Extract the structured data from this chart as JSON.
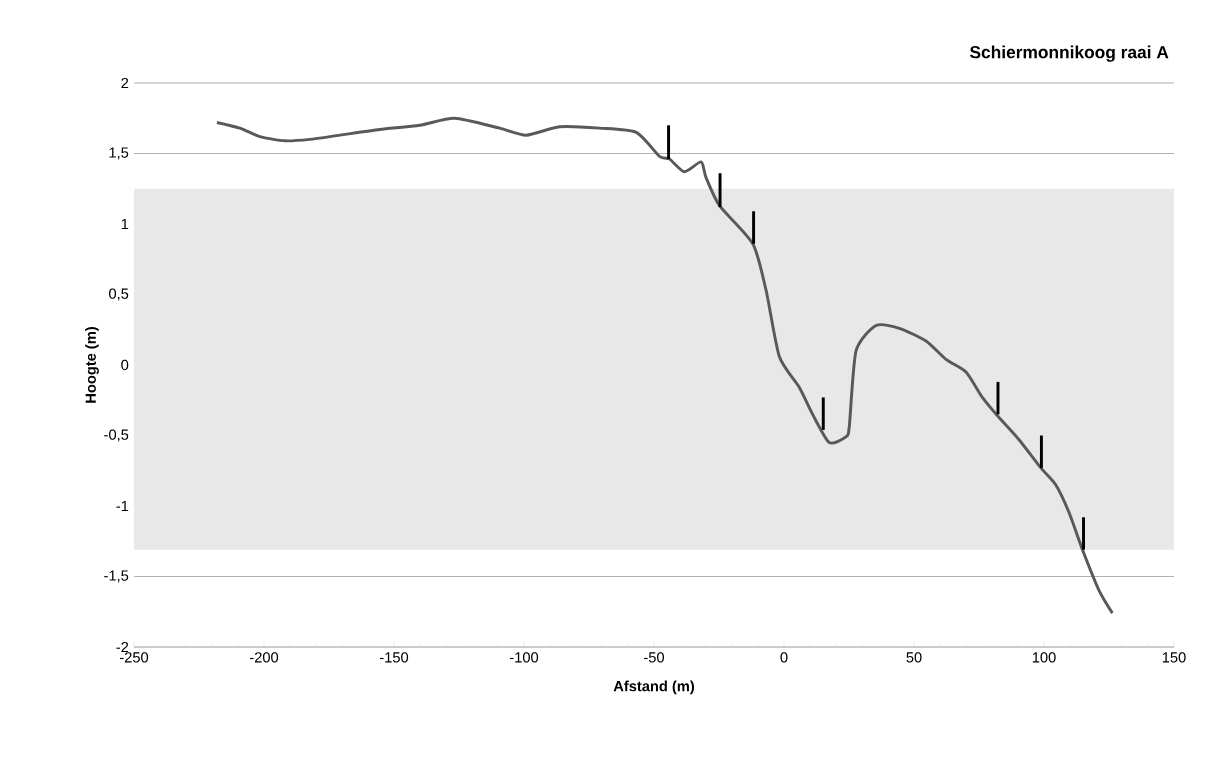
{
  "chart_data": {
    "type": "line",
    "title": "**Schiermonnikoog  raai A**",
    "xlabel": "Afstand (m)",
    "ylabel": "Hoogte (m)",
    "xlim": [
      -250,
      150
    ],
    "xticks": [
      -250,
      -200,
      -150,
      -100,
      -50,
      0,
      50,
      100,
      150
    ],
    "ylim": [
      -2,
      2
    ],
    "yticks": [
      {
        "value": -2,
        "label": "-2"
      },
      {
        "value": -1.5,
        "label": "-1,5"
      },
      {
        "value": -1,
        "label": "-1"
      },
      {
        "value": -0.5,
        "label": "-0,5"
      },
      {
        "value": 0,
        "label": "0"
      },
      {
        "value": 0.5,
        "label": "0,5"
      },
      {
        "value": 1,
        "label": "1"
      },
      {
        "value": 1.5,
        "label": "1,5"
      },
      {
        "value": 2,
        "label": "2"
      }
    ],
    "grid": "y",
    "marker": "none",
    "line_style": "solid",
    "bands": [
      {
        "axis": "y",
        "from": -1.31,
        "to": 1.25,
        "color": "#e8e8e8"
      }
    ],
    "series": [
      {
        "type": "line",
        "color": "#595959",
        "x": [
          -218.1,
          -209.3,
          -201.6,
          -192,
          -182.4,
          -170.8,
          -155.5,
          -140.1,
          -126.7,
          -109.4,
          -99.1,
          -86.3,
          -70.9,
          -56.8,
          -47.9,
          -44.0,
          -38.3,
          -31.9,
          -30,
          -24.8,
          -12.0,
          -6.9,
          -1.8,
          5.9,
          11.0,
          17.4,
          23.8,
          25.1,
          27.7,
          35.4,
          44.3,
          54.6,
          62.3,
          70.0,
          76.3,
          82.1,
          90.4,
          98.8,
          104.5,
          109.7,
          114.8,
          121.2,
          126.3
        ],
        "values": [
          1.72,
          1.68,
          1.62,
          1.59,
          1.6,
          1.63,
          1.67,
          1.7,
          1.75,
          1.68,
          1.63,
          1.69,
          1.68,
          1.65,
          1.48,
          1.46,
          1.37,
          1.44,
          1.33,
          1.13,
          0.86,
          0.53,
          0.06,
          -0.16,
          -0.35,
          -0.55,
          -0.51,
          -0.44,
          0.1,
          0.28,
          0.26,
          0.17,
          0.04,
          -0.05,
          -0.23,
          -0.36,
          -0.53,
          -0.73,
          -0.85,
          -1.05,
          -1.31,
          -1.6,
          -1.76
        ]
      },
      {
        "type": "bar",
        "color": "#000000",
        "x": [
          -44.4,
          -24.6,
          -11.7,
          15.1,
          82.3,
          99.0,
          115.2
        ],
        "base": [
          1.46,
          1.12,
          0.86,
          -0.46,
          -0.35,
          -0.73,
          -1.31
        ],
        "values": [
          0.24,
          0.24,
          0.23,
          0.23,
          0.23,
          0.23,
          0.23
        ]
      }
    ]
  }
}
